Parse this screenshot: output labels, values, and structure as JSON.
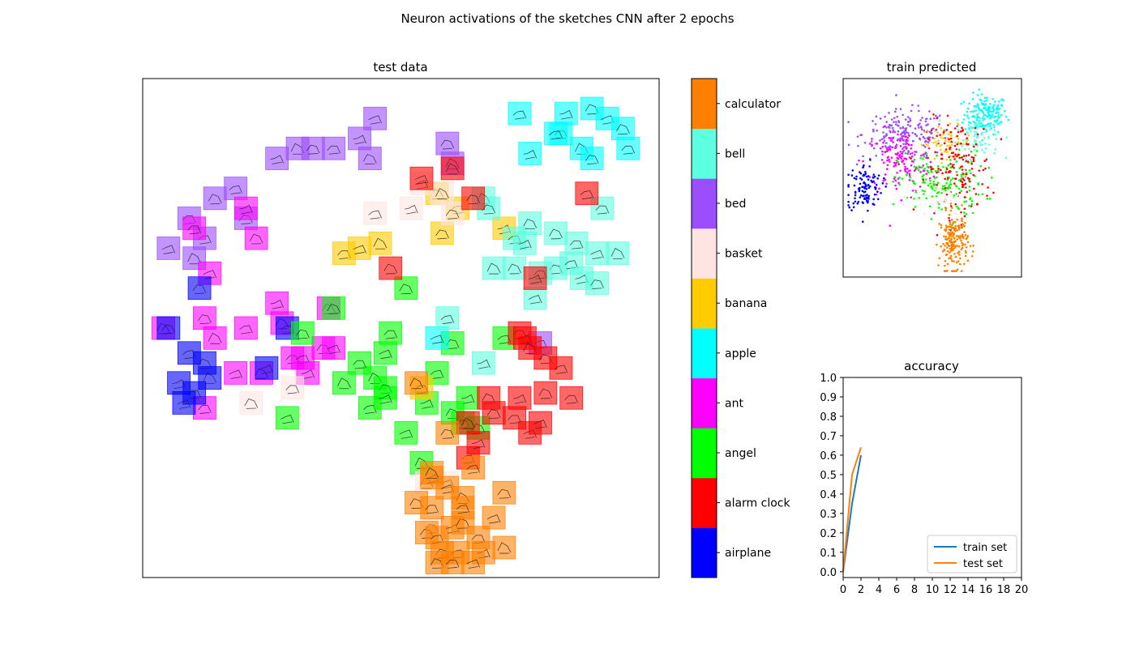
{
  "figure": {
    "suptitle": "Neuron activations of the sketches CNN after 2 epochs"
  },
  "chart_data": [
    {
      "type": "scatter",
      "title": "test data",
      "xlabel": "",
      "ylabel": "",
      "ticks": "none",
      "grid": false,
      "marker": "thumbnail sketch images tinted by class color",
      "clusters": [
        {
          "class": "bed",
          "points": [
            [
              0.3,
              0.86
            ],
            [
              0.33,
              0.86
            ],
            [
              0.18,
              0.78
            ],
            [
              0.26,
              0.84
            ],
            [
              0.14,
              0.76
            ],
            [
              0.09,
              0.72
            ],
            [
              0.05,
              0.66
            ],
            [
              0.1,
              0.64
            ],
            [
              0.2,
              0.72
            ],
            [
              0.12,
              0.68
            ],
            [
              0.42,
              0.88
            ],
            [
              0.44,
              0.84
            ],
            [
              0.37,
              0.86
            ],
            [
              0.45,
              0.92
            ],
            [
              0.6,
              0.83
            ],
            [
              0.59,
              0.87
            ],
            [
              0.77,
              0.47
            ]
          ]
        },
        {
          "class": "ant",
          "points": [
            [
              0.2,
              0.74
            ],
            [
              0.22,
              0.68
            ],
            [
              0.1,
              0.7
            ],
            [
              0.13,
              0.61
            ],
            [
              0.04,
              0.5
            ],
            [
              0.12,
              0.52
            ],
            [
              0.2,
              0.5
            ],
            [
              0.26,
              0.55
            ],
            [
              0.23,
              0.41
            ],
            [
              0.29,
              0.44
            ],
            [
              0.18,
              0.41
            ],
            [
              0.27,
              0.51
            ],
            [
              0.35,
              0.46
            ],
            [
              0.31,
              0.44
            ],
            [
              0.32,
              0.41
            ],
            [
              0.36,
              0.54
            ],
            [
              0.12,
              0.34
            ],
            [
              0.37,
              0.46
            ],
            [
              0.14,
              0.48
            ]
          ]
        },
        {
          "class": "airplane",
          "points": [
            [
              0.05,
              0.5
            ],
            [
              0.09,
              0.45
            ],
            [
              0.07,
              0.39
            ],
            [
              0.12,
              0.43
            ],
            [
              0.1,
              0.37
            ],
            [
              0.08,
              0.35
            ],
            [
              0.13,
              0.4
            ],
            [
              0.11,
              0.58
            ],
            [
              0.28,
              0.5
            ],
            [
              0.24,
              0.42
            ]
          ]
        },
        {
          "class": "angel",
          "points": [
            [
              0.37,
              0.54
            ],
            [
              0.48,
              0.49
            ],
            [
              0.47,
              0.45
            ],
            [
              0.45,
              0.4
            ],
            [
              0.47,
              0.38
            ],
            [
              0.44,
              0.34
            ],
            [
              0.47,
              0.36
            ],
            [
              0.51,
              0.58
            ],
            [
              0.42,
              0.43
            ],
            [
              0.28,
              0.32
            ],
            [
              0.39,
              0.39
            ],
            [
              0.6,
              0.47
            ],
            [
              0.57,
              0.41
            ],
            [
              0.55,
              0.35
            ],
            [
              0.6,
              0.33
            ],
            [
              0.62,
              0.31
            ],
            [
              0.51,
              0.29
            ],
            [
              0.54,
              0.23
            ],
            [
              0.31,
              0.49
            ],
            [
              0.7,
              0.48
            ],
            [
              0.63,
              0.36
            ],
            [
              0.65,
              0.3
            ]
          ]
        },
        {
          "class": "banana",
          "points": [
            [
              0.39,
              0.65
            ],
            [
              0.42,
              0.66
            ],
            [
              0.46,
              0.67
            ],
            [
              0.58,
              0.69
            ],
            [
              0.61,
              0.74
            ],
            [
              0.7,
              0.7
            ],
            [
              0.57,
              0.77
            ],
            [
              0.54,
              0.38
            ]
          ]
        },
        {
          "class": "basket",
          "points": [
            [
              0.54,
              0.79
            ],
            [
              0.58,
              0.77
            ],
            [
              0.6,
              0.73
            ],
            [
              0.45,
              0.73
            ],
            [
              0.52,
              0.74
            ],
            [
              0.21,
              0.35
            ],
            [
              0.29,
              0.38
            ],
            [
              0.59,
              0.19
            ],
            [
              0.55,
              0.19
            ],
            [
              0.56,
              0.1
            ]
          ]
        },
        {
          "class": "apple",
          "points": [
            [
              0.73,
              0.93
            ],
            [
              0.82,
              0.93
            ],
            [
              0.87,
              0.94
            ],
            [
              0.81,
              0.89
            ],
            [
              0.9,
              0.92
            ],
            [
              0.85,
              0.86
            ],
            [
              0.87,
              0.84
            ],
            [
              0.8,
              0.89
            ],
            [
              0.75,
              0.85
            ],
            [
              0.93,
              0.9
            ],
            [
              0.94,
              0.86
            ],
            [
              0.57,
              0.48
            ]
          ]
        },
        {
          "class": "bell",
          "points": [
            [
              0.66,
              0.76
            ],
            [
              0.67,
              0.74
            ],
            [
              0.72,
              0.68
            ],
            [
              0.74,
              0.67
            ],
            [
              0.8,
              0.69
            ],
            [
              0.84,
              0.67
            ],
            [
              0.88,
              0.65
            ],
            [
              0.92,
              0.65
            ],
            [
              0.8,
              0.62
            ],
            [
              0.83,
              0.63
            ],
            [
              0.85,
              0.6
            ],
            [
              0.72,
              0.62
            ],
            [
              0.77,
              0.61
            ],
            [
              0.76,
              0.56
            ],
            [
              0.68,
              0.62
            ],
            [
              0.88,
              0.59
            ],
            [
              0.59,
              0.52
            ],
            [
              0.66,
              0.43
            ],
            [
              0.75,
              0.71
            ],
            [
              0.89,
              0.74
            ]
          ]
        },
        {
          "class": "alarm clock",
          "points": [
            [
              0.54,
              0.8
            ],
            [
              0.6,
              0.82
            ],
            [
              0.64,
              0.76
            ],
            [
              0.86,
              0.77
            ],
            [
              0.76,
              0.6
            ],
            [
              0.48,
              0.62
            ],
            [
              0.73,
              0.49
            ],
            [
              0.74,
              0.48
            ],
            [
              0.75,
              0.46
            ],
            [
              0.78,
              0.44
            ],
            [
              0.81,
              0.42
            ],
            [
              0.73,
              0.36
            ],
            [
              0.67,
              0.36
            ],
            [
              0.72,
              0.32
            ],
            [
              0.75,
              0.29
            ],
            [
              0.63,
              0.31
            ],
            [
              0.68,
              0.33
            ],
            [
              0.63,
              0.24
            ],
            [
              0.65,
              0.27
            ],
            [
              0.78,
              0.37
            ],
            [
              0.83,
              0.36
            ],
            [
              0.77,
              0.31
            ]
          ]
        },
        {
          "class": "calculator",
          "points": [
            [
              0.53,
              0.39
            ],
            [
              0.59,
              0.29
            ],
            [
              0.64,
              0.22
            ],
            [
              0.56,
              0.2
            ],
            [
              0.53,
              0.15
            ],
            [
              0.56,
              0.14
            ],
            [
              0.59,
              0.18
            ],
            [
              0.62,
              0.16
            ],
            [
              0.55,
              0.09
            ],
            [
              0.57,
              0.08
            ],
            [
              0.6,
              0.1
            ],
            [
              0.62,
              0.11
            ],
            [
              0.65,
              0.08
            ],
            [
              0.68,
              0.12
            ],
            [
              0.7,
              0.06
            ],
            [
              0.58,
              0.05
            ],
            [
              0.61,
              0.05
            ],
            [
              0.66,
              0.05
            ],
            [
              0.57,
              0.03
            ],
            [
              0.6,
              0.03
            ],
            [
              0.64,
              0.03
            ],
            [
              0.56,
              0.21
            ],
            [
              0.7,
              0.17
            ],
            [
              0.62,
              0.14
            ]
          ]
        }
      ]
    },
    {
      "type": "colorbar",
      "classes": [
        "airplane",
        "alarm clock",
        "angel",
        "ant",
        "apple",
        "banana",
        "basket",
        "bed",
        "bell",
        "calculator"
      ],
      "colors": [
        "#0000ff",
        "#ff0000",
        "#00ff00",
        "#ff00ff",
        "#00ffff",
        "#ffcc00",
        "#ffe4e1",
        "#9b4dff",
        "#5cffe0",
        "#ff8000"
      ]
    },
    {
      "type": "scatter",
      "title": "train predicted",
      "xlabel": "",
      "ylabel": "",
      "ticks": "none",
      "grid": false,
      "marker": "small dots colored by predicted class",
      "clusters": [
        {
          "class": "apple",
          "cx": 0.8,
          "cy": 0.82,
          "sx": 0.06,
          "sy": 0.05,
          "n": 160
        },
        {
          "class": "bell",
          "cx": 0.75,
          "cy": 0.72,
          "sx": 0.06,
          "sy": 0.06,
          "n": 90
        },
        {
          "class": "banana",
          "cx": 0.58,
          "cy": 0.68,
          "sx": 0.07,
          "sy": 0.04,
          "n": 60
        },
        {
          "class": "bed",
          "cx": 0.35,
          "cy": 0.72,
          "sx": 0.12,
          "sy": 0.06,
          "n": 190
        },
        {
          "class": "ant",
          "cx": 0.32,
          "cy": 0.58,
          "sx": 0.1,
          "sy": 0.08,
          "n": 150
        },
        {
          "class": "airplane",
          "cx": 0.12,
          "cy": 0.45,
          "sx": 0.05,
          "sy": 0.06,
          "n": 110
        },
        {
          "class": "angel",
          "cx": 0.55,
          "cy": 0.47,
          "sx": 0.12,
          "sy": 0.08,
          "n": 170
        },
        {
          "class": "alarm clock",
          "cx": 0.65,
          "cy": 0.55,
          "sx": 0.09,
          "sy": 0.12,
          "n": 150
        },
        {
          "class": "calculator",
          "cx": 0.62,
          "cy": 0.18,
          "sx": 0.04,
          "sy": 0.07,
          "n": 190
        },
        {
          "class": "basket",
          "cx": 0.55,
          "cy": 0.4,
          "sx": 0.08,
          "sy": 0.06,
          "n": 40
        }
      ]
    },
    {
      "type": "line",
      "title": "accuracy",
      "xlabel": "",
      "ylabel": "",
      "xlim": [
        0,
        20
      ],
      "ylim": [
        -0.03,
        1.0
      ],
      "xticks": [
        0,
        2,
        4,
        6,
        8,
        10,
        12,
        14,
        16,
        18,
        20
      ],
      "yticks": [
        0.0,
        0.1,
        0.2,
        0.3,
        0.4,
        0.5,
        0.6,
        0.7,
        0.8,
        0.9,
        1.0
      ],
      "grid": false,
      "legend": "lower-right",
      "series": [
        {
          "name": "train set",
          "color": "#1f77b4",
          "x": [
            0,
            1,
            2
          ],
          "y": [
            0.0,
            0.35,
            0.6
          ]
        },
        {
          "name": "test set",
          "color": "#ff7f0e",
          "x": [
            0,
            1,
            2
          ],
          "y": [
            0.0,
            0.5,
            0.64
          ]
        }
      ]
    }
  ]
}
